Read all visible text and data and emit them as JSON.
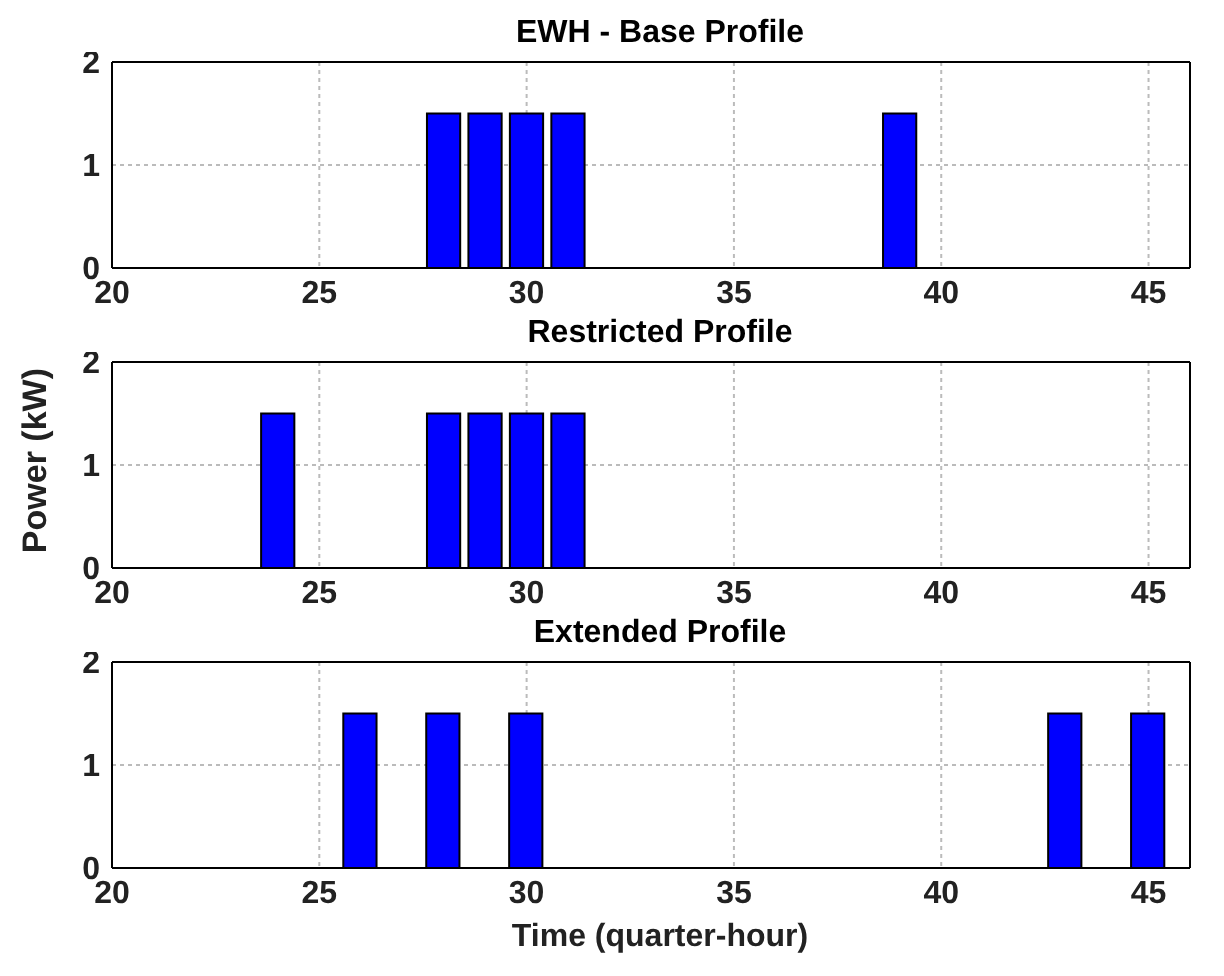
{
  "chart_data": [
    {
      "type": "bar",
      "title": "EWH - Base Profile",
      "x": [
        28,
        29,
        30,
        31,
        39
      ],
      "values": [
        1.5,
        1.5,
        1.5,
        1.5,
        1.5
      ],
      "color": "#0000ff",
      "xlim": [
        20,
        46
      ],
      "xticks": [
        20,
        25,
        30,
        35,
        40,
        45
      ],
      "ylim": [
        0,
        2
      ],
      "yticks": [
        0,
        1,
        2
      ],
      "grid": true
    },
    {
      "type": "bar",
      "title": "Restricted Profile",
      "ylabel": "Power (kW)",
      "x": [
        24,
        28,
        29,
        30,
        31
      ],
      "values": [
        1.5,
        1.5,
        1.5,
        1.5,
        1.5
      ],
      "color": "#0000ff",
      "xlim": [
        20,
        46
      ],
      "xticks": [
        20,
        25,
        30,
        35,
        40,
        45
      ],
      "ylim": [
        0,
        2
      ],
      "yticks": [
        0,
        1,
        2
      ],
      "grid": true
    },
    {
      "type": "bar",
      "title": "Extended Profile",
      "xlabel": "Time (quarter-hour)",
      "x": [
        26,
        28,
        30,
        43,
        45
      ],
      "values": [
        1.5,
        1.5,
        1.5,
        1.5,
        1.5
      ],
      "color": "#0000ff",
      "xlim": [
        20,
        46
      ],
      "xticks": [
        20,
        25,
        30,
        35,
        40,
        45
      ],
      "ylim": [
        0,
        2
      ],
      "yticks": [
        0,
        1,
        2
      ],
      "grid": true
    }
  ]
}
